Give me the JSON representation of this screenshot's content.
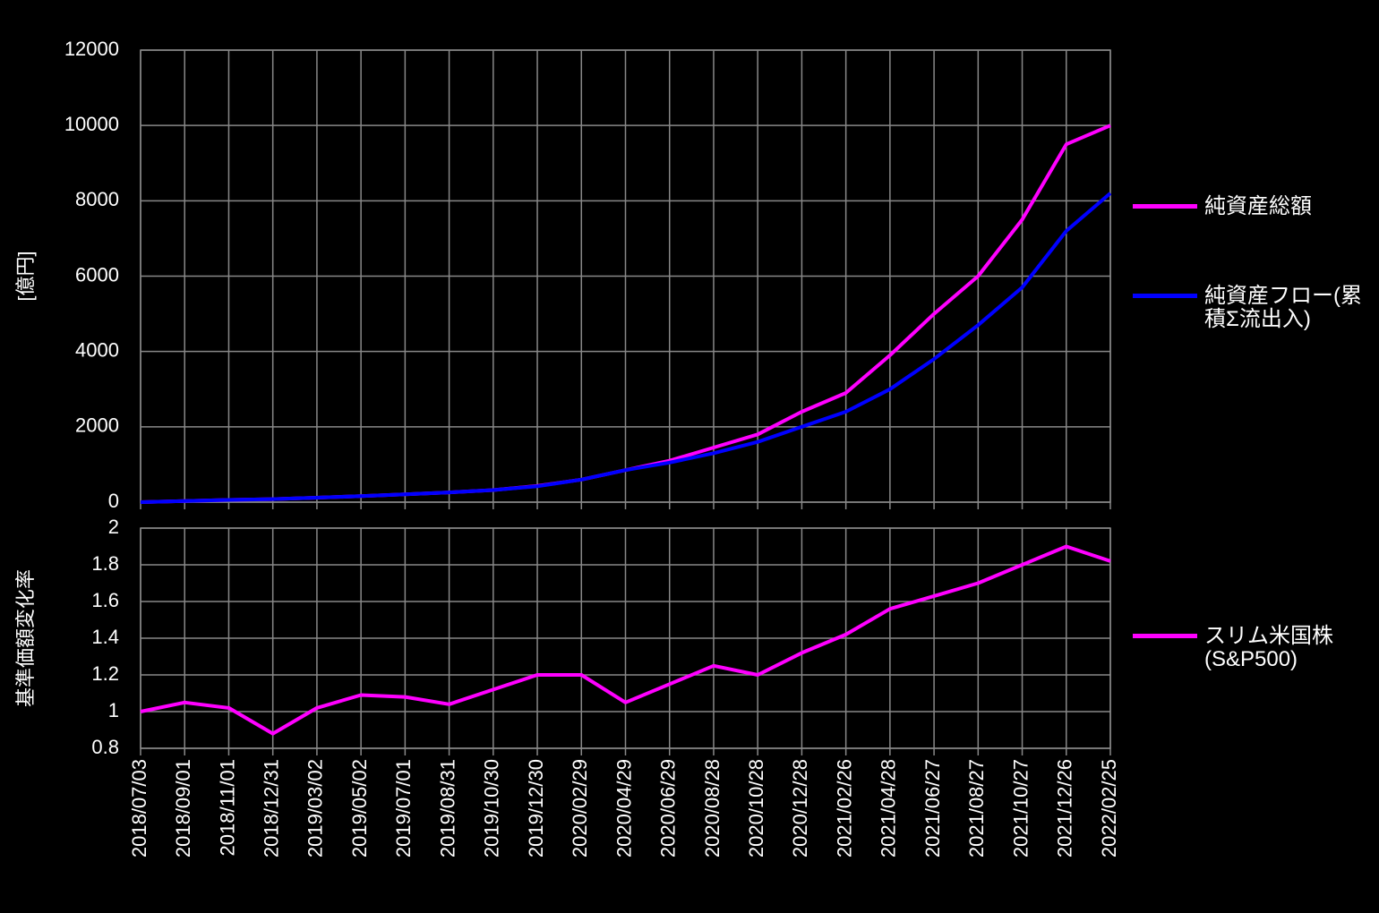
{
  "chart_data": [
    {
      "type": "line",
      "y_label": "[億円]",
      "ylim": [
        0,
        12000
      ],
      "yticks": [
        0,
        2000,
        4000,
        6000,
        8000,
        10000,
        12000
      ],
      "grid": true,
      "legend": "right",
      "series": [
        {
          "name": "純資産総額",
          "color": "#ff00ff",
          "values": [
            0,
            30,
            60,
            80,
            120,
            160,
            210,
            260,
            320,
            430,
            600,
            850,
            1100,
            1450,
            1800,
            2400,
            2900,
            3900,
            5000,
            6000,
            7500,
            9500,
            10000
          ]
        },
        {
          "name": "純資産フロー(累積Σ流出入)",
          "color": "#0000ff",
          "values": [
            0,
            30,
            60,
            80,
            120,
            160,
            210,
            260,
            320,
            420,
            600,
            850,
            1050,
            1300,
            1600,
            2000,
            2400,
            3000,
            3800,
            4700,
            5700,
            7200,
            8200
          ]
        }
      ]
    },
    {
      "type": "line",
      "y_label": "基準価額変化率",
      "categories": [
        "2018/07/03",
        "2018/09/01",
        "2018/11/01",
        "2018/12/31",
        "2019/03/02",
        "2019/05/02",
        "2019/07/01",
        "2019/08/31",
        "2019/10/30",
        "2019/12/30",
        "2020/02/29",
        "2020/04/29",
        "2020/06/29",
        "2020/08/28",
        "2020/10/28",
        "2020/12/28",
        "2021/02/26",
        "2021/04/28",
        "2021/06/27",
        "2021/08/27",
        "2021/10/27",
        "2021/12/26",
        "2022/02/25"
      ],
      "ylim": [
        0.8,
        2
      ],
      "yticks": [
        0.8,
        1,
        1.2,
        1.4,
        1.6,
        1.8,
        2
      ],
      "grid": true,
      "legend": "right",
      "series": [
        {
          "name": "スリム米国株(S&P500)",
          "color": "#ff00ff",
          "values": [
            1.0,
            1.05,
            1.02,
            0.88,
            1.02,
            1.09,
            1.08,
            1.04,
            1.12,
            1.2,
            1.2,
            1.05,
            1.15,
            1.25,
            1.2,
            1.32,
            1.42,
            1.56,
            1.63,
            1.7,
            1.8,
            1.9,
            1.82
          ]
        }
      ]
    }
  ]
}
